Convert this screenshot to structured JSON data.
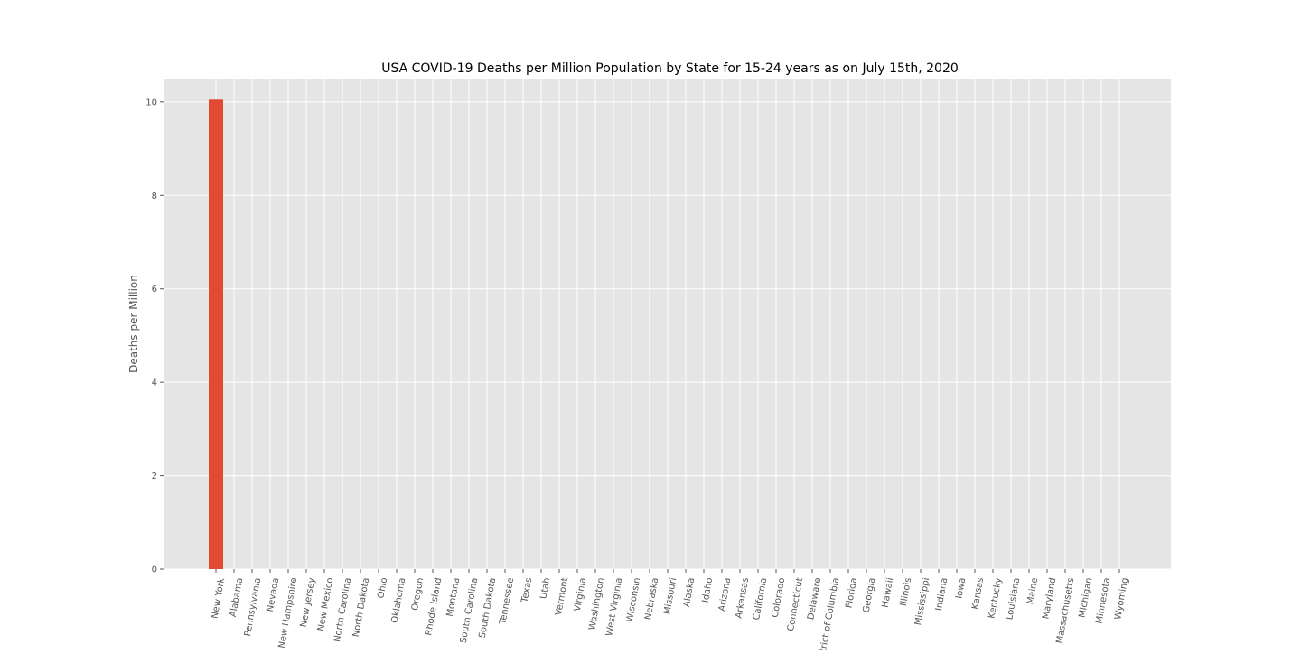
{
  "chart_data": {
    "type": "bar",
    "title": "USA COVID-19 Deaths per Million Population by State for 15-24 years as on July 15th, 2020",
    "xlabel": "",
    "ylabel": "Deaths per Million",
    "ylim": [
      0,
      10.5
    ],
    "yticks": [
      0,
      2,
      4,
      6,
      8,
      10
    ],
    "grid": true,
    "categories": [
      "New York",
      "Alabama",
      "Pennsylvania",
      "Nevada",
      "New Hampshire",
      "New Jersey",
      "New Mexico",
      "North Carolina",
      "North Dakota",
      "Ohio",
      "Oklahoma",
      "Oregon",
      "Rhode Island",
      "Montana",
      "South Carolina",
      "South Dakota",
      "Tennessee",
      "Texas",
      "Utah",
      "Vermont",
      "Virginia",
      "Washington",
      "West Virginia",
      "Wisconsin",
      "Nebraska",
      "Missouri",
      "Alaska",
      "Idaho",
      "Arizona",
      "Arkansas",
      "California",
      "Colorado",
      "Connecticut",
      "Delaware",
      "District of Columbia",
      "Florida",
      "Georgia",
      "Hawaii",
      "Illinois",
      "Mississippi",
      "Indiana",
      "Iowa",
      "Kansas",
      "Kentucky",
      "Louisiana",
      "Maine",
      "Maryland",
      "Massachusetts",
      "Michigan",
      "Minnesota",
      "Wyoming"
    ],
    "values": [
      10.05,
      0,
      0,
      0,
      0,
      0,
      0,
      0,
      0,
      0,
      0,
      0,
      0,
      0,
      0,
      0,
      0,
      0,
      0,
      0,
      0,
      0,
      0,
      0,
      0,
      0,
      0,
      0,
      0,
      0,
      0,
      0,
      0,
      0,
      0,
      0,
      0,
      0,
      0,
      0,
      0,
      0,
      0,
      0,
      0,
      0,
      0,
      0,
      0,
      0,
      0
    ],
    "colors": {
      "bar": "#E24A33",
      "plot_background": "#E5E5E5",
      "grid": "#FFFFFF",
      "tick": "#555555",
      "title": "#000000"
    }
  }
}
